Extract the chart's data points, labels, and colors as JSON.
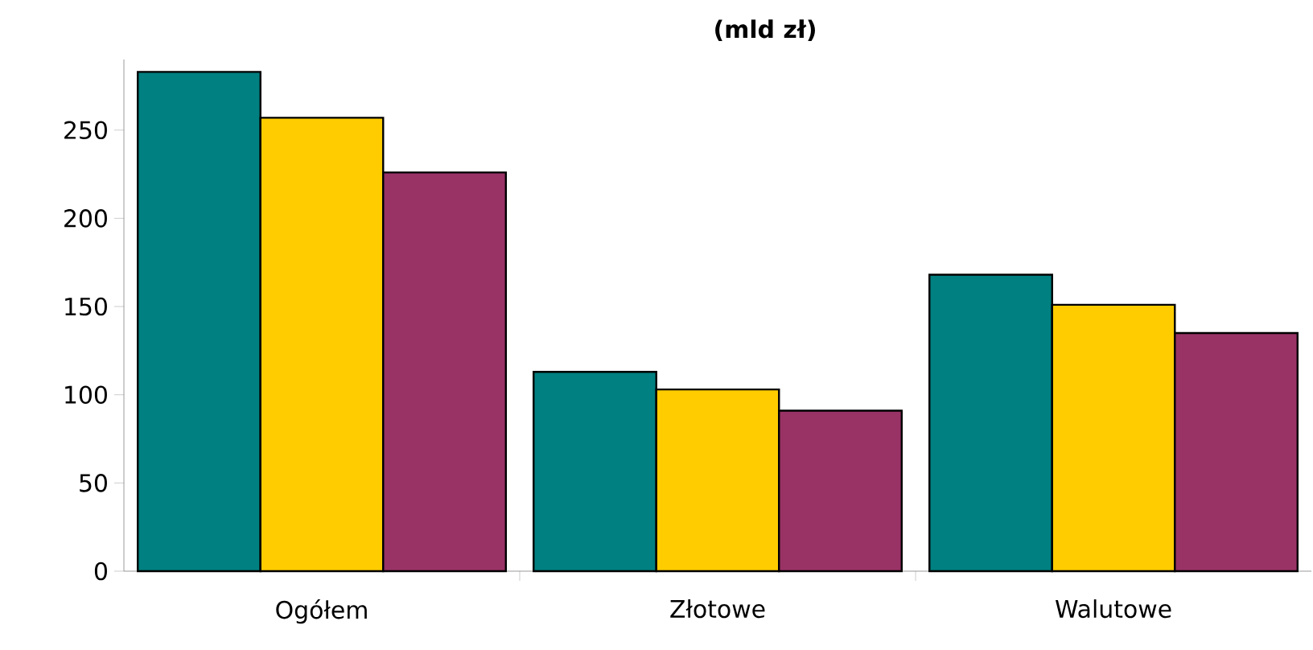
{
  "chart_data": {
    "type": "bar",
    "title": "(mld zł)",
    "categories": [
      "Ogółem",
      "Złotowe",
      "Walutowe"
    ],
    "series": [
      {
        "color": "#008080",
        "values": [
          283,
          113,
          168
        ]
      },
      {
        "color": "#ffcc00",
        "values": [
          257,
          103,
          151
        ]
      },
      {
        "color": "#993366",
        "values": [
          226,
          91,
          135
        ]
      }
    ],
    "ylim": [
      0,
      290
    ],
    "yticks": [
      0,
      50,
      100,
      150,
      200,
      250
    ],
    "grid": false
  }
}
